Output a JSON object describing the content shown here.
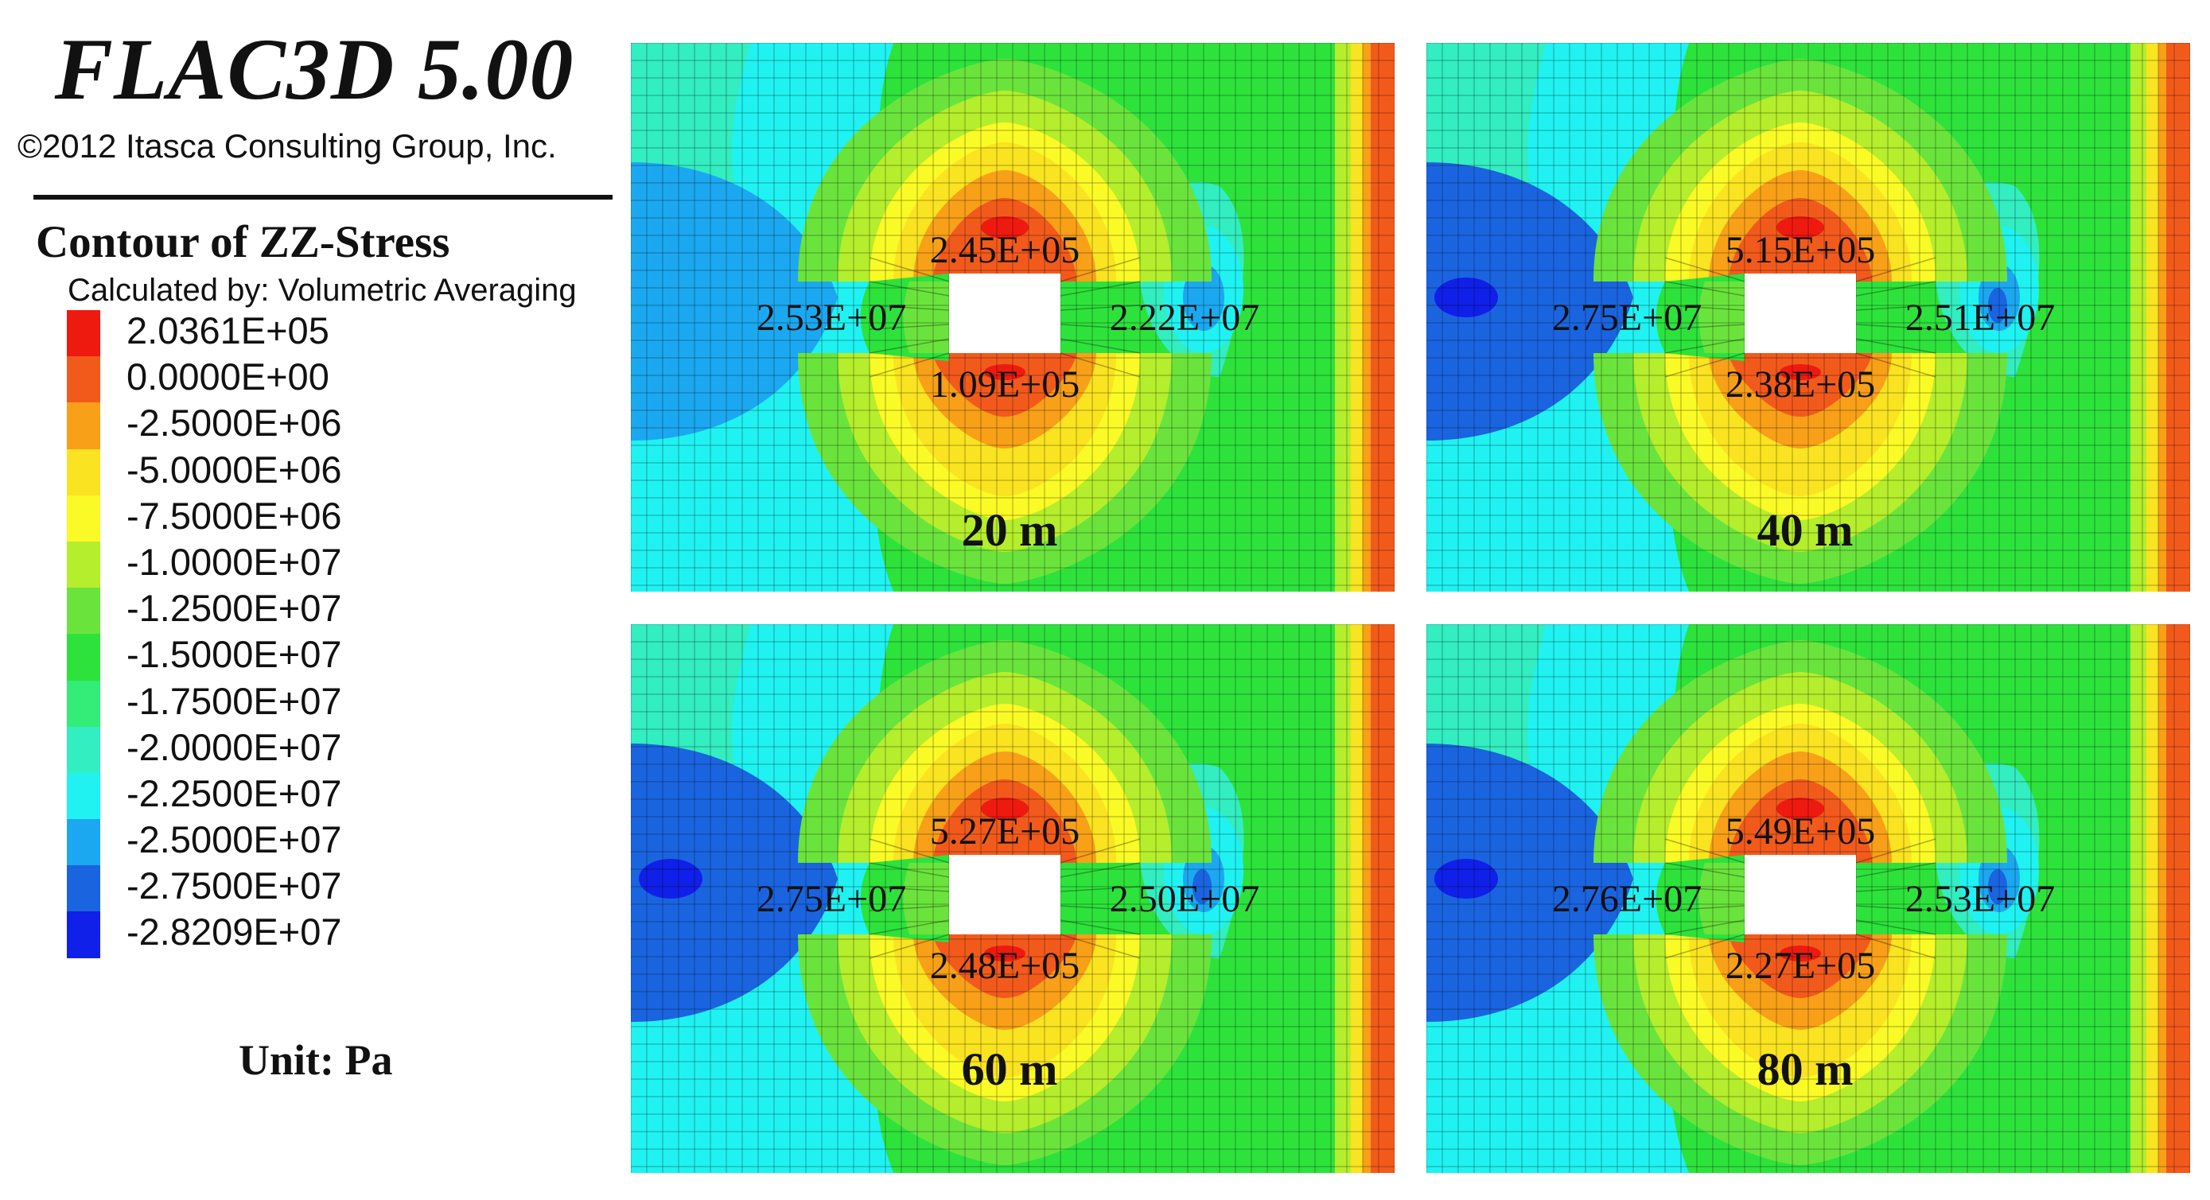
{
  "header": {
    "brand": "FLAC3D 5.00",
    "copyright": "©2012 Itasca Consulting Group, Inc."
  },
  "legend": {
    "title": "Contour of ZZ-Stress",
    "method": "Calculated by: Volumetric Averaging",
    "unit": "Unit: Pa",
    "levels": [
      {
        "label": "2.0361E+05",
        "color": "#ee1a10"
      },
      {
        "label": "0.0000E+00",
        "color": "#f25a1c"
      },
      {
        "label": "-2.5000E+06",
        "color": "#f8a018"
      },
      {
        "label": "-5.0000E+06",
        "color": "#fae320"
      },
      {
        "label": "-7.5000E+06",
        "color": "#fafa26"
      },
      {
        "label": "-1.0000E+07",
        "color": "#b4ee2c"
      },
      {
        "label": "-1.2500E+07",
        "color": "#6ae43c"
      },
      {
        "label": "-1.5000E+07",
        "color": "#2ee23c"
      },
      {
        "label": "-1.7500E+07",
        "color": "#34ec78"
      },
      {
        "label": "-2.0000E+07",
        "color": "#32eec0"
      },
      {
        "label": "-2.2500E+07",
        "color": "#20f2f2"
      },
      {
        "label": "-2.5000E+07",
        "color": "#1ca8f0"
      },
      {
        "label": "-2.7500E+07",
        "color": "#1a64e0"
      },
      {
        "label": "-2.8209E+07",
        "color": "#1020e8"
      }
    ]
  },
  "panels": [
    {
      "distance": "20 m",
      "top": "2.45E+05",
      "bottom": "1.09E+05",
      "left": "2.53E+07",
      "right": "2.22E+07",
      "deep_zone": false
    },
    {
      "distance": "40 m",
      "top": "5.15E+05",
      "bottom": "2.38E+05",
      "left": "2.75E+07",
      "right": "2.51E+07",
      "deep_zone": true
    },
    {
      "distance": "60 m",
      "top": "5.27E+05",
      "bottom": "2.48E+05",
      "left": "2.75E+07",
      "right": "2.50E+07",
      "deep_zone": true
    },
    {
      "distance": "80 m",
      "top": "5.49E+05",
      "bottom": "2.27E+05",
      "left": "2.76E+07",
      "right": "2.53E+07",
      "deep_zone": true
    }
  ]
}
